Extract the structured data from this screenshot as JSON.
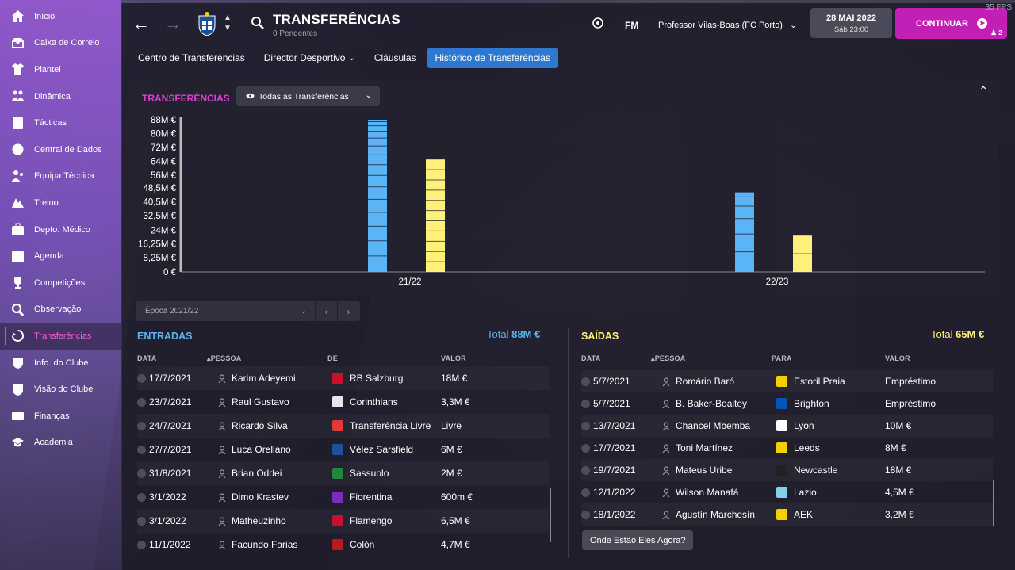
{
  "sidebar": {
    "items": [
      {
        "label": "Início",
        "icon": "home-icon"
      },
      {
        "label": "Caixa de Correio",
        "icon": "inbox-icon"
      },
      {
        "label": "Plantel",
        "icon": "shirt-icon"
      },
      {
        "label": "Dinâmica",
        "icon": "dynamics-icon"
      },
      {
        "label": "Tácticas",
        "icon": "tactics-icon"
      },
      {
        "label": "Central de Dados",
        "icon": "data-hub-icon"
      },
      {
        "label": "Equipa Técnica",
        "icon": "staff-icon"
      },
      {
        "label": "Treino",
        "icon": "training-icon"
      },
      {
        "label": "Depto. Médico",
        "icon": "medical-icon"
      },
      {
        "label": "Agenda",
        "icon": "calendar-icon"
      },
      {
        "label": "Competições",
        "icon": "trophy-icon"
      },
      {
        "label": "Observação",
        "icon": "scouting-icon"
      },
      {
        "label": "Transferências",
        "icon": "transfers-icon",
        "active": true
      },
      {
        "label": "Info. do Clube",
        "icon": "club-info-icon"
      },
      {
        "label": "Visão do Clube",
        "icon": "club-vision-icon"
      },
      {
        "label": "Finanças",
        "icon": "finances-icon"
      },
      {
        "label": "Academia",
        "icon": "academy-icon"
      }
    ]
  },
  "header": {
    "title": "TRANSFERÊNCIAS",
    "subtitle": "0 Pendentes",
    "fm_label": "FM",
    "manager": "Professor Vilas-Boas (FC Porto)",
    "date": "28 MAI 2022",
    "time": "Sáb 23:00",
    "continue_label": "CONTINUAR",
    "people_count": "2",
    "fps": "35 FPS"
  },
  "tabs": [
    {
      "label": "Centro de Transferências"
    },
    {
      "label": "Director Desportivo",
      "dropdown": true
    },
    {
      "label": "Cláusulas"
    },
    {
      "label": "Histórico de Transferências",
      "active": true
    }
  ],
  "chart_panel": {
    "title": "TRANSFERÊNCIAS",
    "filter": "Todas as Transferências"
  },
  "chart_data": {
    "type": "bar",
    "categories": [
      "21/22",
      "22/23"
    ],
    "series": [
      {
        "values": [
          88,
          46
        ],
        "color": "#5ab4f5"
      },
      {
        "values": [
          65,
          21
        ],
        "color": "#fff07a"
      }
    ],
    "yticks": [
      "0 €",
      "8,25M €",
      "16,25M €",
      "24M €",
      "32,5M €",
      "40,5M €",
      "48,5M €",
      "56M €",
      "64M €",
      "72M €",
      "80M €",
      "88M €"
    ],
    "ytick_values": [
      0,
      8.25,
      16.25,
      24,
      32.5,
      40.5,
      48.5,
      56,
      64,
      72,
      80,
      88
    ],
    "ylim": [
      0,
      88
    ]
  },
  "season_select": "Época 2021/22",
  "incoming": {
    "title": "ENTRADAS",
    "total_label": "Total",
    "total": "88M €",
    "headers": [
      "DATA",
      "PESSOA",
      "DE",
      "VALOR"
    ],
    "rows": [
      {
        "date": "17/7/2021",
        "person": "Karim Adeyemi",
        "club": "RB Salzburg",
        "value": "18M €",
        "crest": "#c8102e"
      },
      {
        "date": "23/7/2021",
        "person": "Raul Gustavo",
        "club": "Corinthians",
        "value": "3,3M €",
        "crest": "#e6e6e6"
      },
      {
        "date": "24/7/2021",
        "person": "Ricardo Silva",
        "club": "Transferência Livre",
        "value": "Livre",
        "crest": "#e53935"
      },
      {
        "date": "27/7/2021",
        "person": "Luca Orellano",
        "club": "Vélez Sarsfield",
        "value": "6M €",
        "crest": "#1e4fa0"
      },
      {
        "date": "31/8/2021",
        "person": "Brian Oddei",
        "club": "Sassuolo",
        "value": "2M €",
        "crest": "#1b8a3a"
      },
      {
        "date": "3/1/2022",
        "person": "Dimo Krastev",
        "club": "Fiorentina",
        "value": "600m €",
        "crest": "#7b2cbf"
      },
      {
        "date": "3/1/2022",
        "person": "Matheuzinho",
        "club": "Flamengo",
        "value": "6,5M €",
        "crest": "#c8102e"
      },
      {
        "date": "11/1/2022",
        "person": "Facundo Farias",
        "club": "Colón",
        "value": "4,7M €",
        "crest": "#b71c1c"
      }
    ]
  },
  "outgoing": {
    "title": "SAÍDAS",
    "total_label": "Total",
    "total": "65M €",
    "headers": [
      "DATA",
      "PESSOA",
      "PARA",
      "VALOR"
    ],
    "rows": [
      {
        "date": "5/7/2021",
        "person": "Romário Baró",
        "club": "Estoril Praia",
        "value": "Empréstimo",
        "crest": "#f3d000"
      },
      {
        "date": "5/7/2021",
        "person": "B. Baker-Boaitey",
        "club": "Brighton",
        "value": "Empréstimo",
        "crest": "#0057b8"
      },
      {
        "date": "13/7/2021",
        "person": "Chancel Mbemba",
        "club": "Lyon",
        "value": "10M €",
        "crest": "#ffffff"
      },
      {
        "date": "17/7/2021",
        "person": "Toni Martínez",
        "club": "Leeds",
        "value": "8M €",
        "crest": "#f3d000"
      },
      {
        "date": "19/7/2021",
        "person": "Mateus Uribe",
        "club": "Newcastle",
        "value": "18M €",
        "crest": "#222222"
      },
      {
        "date": "12/1/2022",
        "person": "Wilson Manafá",
        "club": "Lazio",
        "value": "4,5M €",
        "crest": "#87ceeb"
      },
      {
        "date": "18/1/2022",
        "person": "Agustín Marchesín",
        "club": "AEK",
        "value": "3,2M €",
        "crest": "#f3d000"
      }
    ],
    "where_label": "Onde Estão Eles Agora?"
  },
  "colors": {
    "accent": "#c21fb6",
    "tab_active": "#2e78d2",
    "incoming_total": "#5ab4f5",
    "outgoing_total": "#fff07a",
    "chart_title": "#e040d0"
  }
}
